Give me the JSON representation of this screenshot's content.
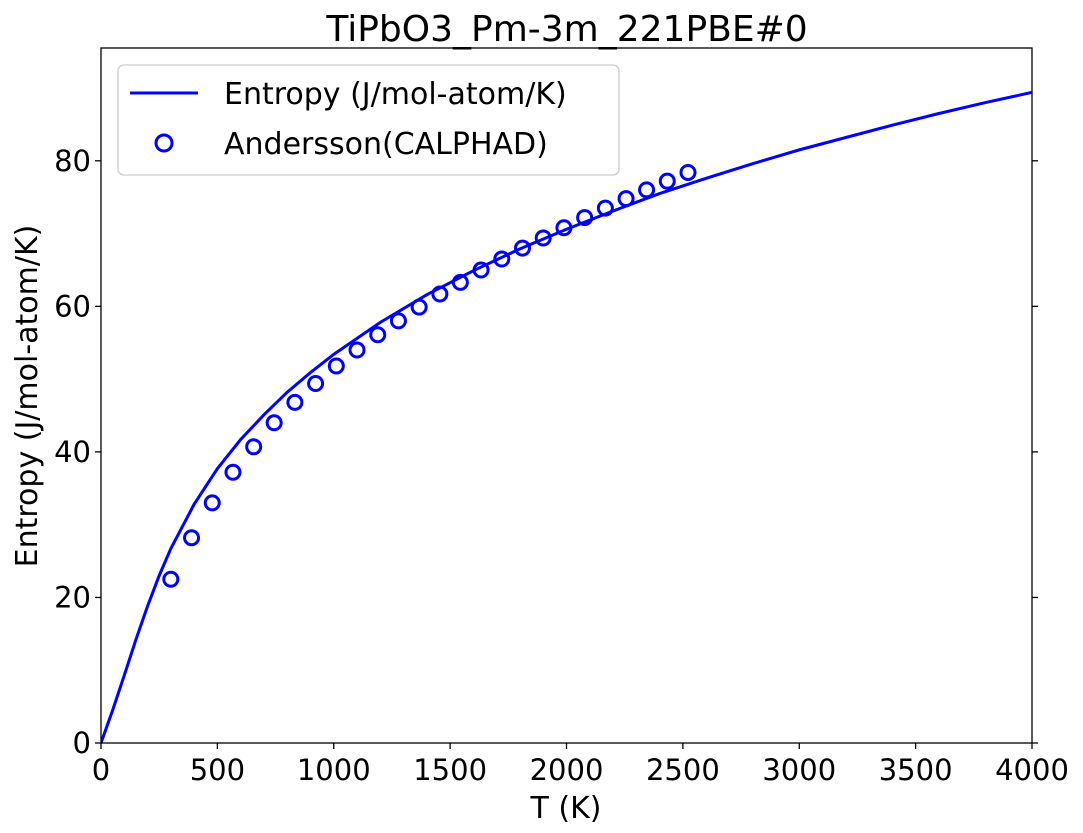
{
  "chart_data": {
    "type": "line",
    "title": "TiPbO3_Pm-3m_221PBE#0",
    "xlabel": "T (K)",
    "ylabel": "Entropy (J/mol-atom/K)",
    "xlim": [
      0,
      4000
    ],
    "ylim": [
      0,
      95.5
    ],
    "xticks": [
      0,
      500,
      1000,
      1500,
      2000,
      2500,
      3000,
      3500,
      4000
    ],
    "yticks": [
      0,
      20,
      40,
      60,
      80
    ],
    "grid": false,
    "legend_position": "upper-left",
    "series": [
      {
        "name": "Entropy (J/mol-atom/K)",
        "kind": "line",
        "color": "#0000ff",
        "x": [
          0,
          50,
          100,
          150,
          200,
          250,
          300,
          400,
          500,
          600,
          700,
          800,
          900,
          1000,
          1200,
          1400,
          1600,
          1800,
          2000,
          2200,
          2400,
          2600,
          2800,
          3000,
          3200,
          3400,
          3600,
          3800,
          4000
        ],
        "y": [
          0,
          4.5,
          9.3,
          14.2,
          18.8,
          23.0,
          26.7,
          32.8,
          37.7,
          41.7,
          45.1,
          48.2,
          50.9,
          53.4,
          57.8,
          61.6,
          64.9,
          67.9,
          70.6,
          73.1,
          75.5,
          77.6,
          79.6,
          81.5,
          83.2,
          84.9,
          86.5,
          88.0,
          89.4
        ]
      },
      {
        "name": "Andersson(CALPHAD)",
        "kind": "scatter",
        "color": "#0000ff",
        "x": [
          300,
          389,
          478,
          567,
          656,
          744,
          833,
          922,
          1011,
          1100,
          1189,
          1278,
          1367,
          1456,
          1544,
          1633,
          1722,
          1811,
          1900,
          1989,
          2078,
          2167,
          2256,
          2344,
          2433,
          2522
        ],
        "y": [
          22.5,
          28.2,
          33.0,
          37.2,
          40.7,
          44.0,
          46.8,
          49.4,
          51.8,
          54.0,
          56.1,
          58.0,
          59.9,
          61.7,
          63.3,
          65.0,
          66.5,
          68.0,
          69.4,
          70.8,
          72.2,
          73.5,
          74.8,
          76.0,
          77.2,
          78.4
        ]
      }
    ]
  }
}
